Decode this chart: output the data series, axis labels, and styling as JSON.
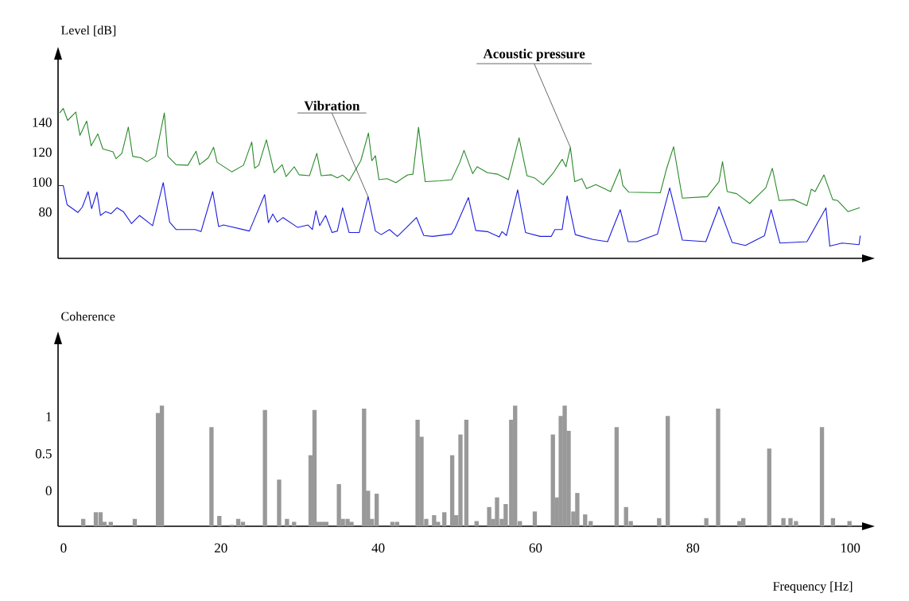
{
  "chart_data": [
    {
      "type": "line",
      "ylabel": "Level [dB]",
      "xlim": [
        -0.7,
        101.5
      ],
      "ylim": [
        49,
        182
      ],
      "yticks": [
        80,
        100,
        120,
        140
      ],
      "tick_labels": "y",
      "series": [
        {
          "color": "#2a8a2a",
          "x": [
            -0.5,
            -0.04,
            0.52,
            1.56,
            2.08,
            2.94,
            3.5,
            4.35,
            4.99,
            6.29,
            6.67,
            7.41,
            8.23,
            8.79,
            9.83,
            10.58,
            11.7,
            12.81,
            13.26,
            14.3,
            15.8,
            16.84,
            17.28,
            18.4,
            19.07,
            19.52,
            21.38,
            22.87,
            23.92,
            24.29,
            24.81,
            25.78,
            26.78,
            27.79,
            28.28,
            29.32,
            29.95,
            31.26,
            32.19,
            32.75,
            34.05,
            34.8,
            35.47,
            36.29,
            37.78,
            38.75,
            39.19,
            39.64,
            40.09,
            41.13,
            42.25,
            43.74,
            44.41,
            45.12,
            45.97,
            47.84,
            49.33,
            50.37,
            50.9,
            52.0,
            52.57,
            53.88,
            55.18,
            56.56,
            57.9,
            58.91,
            59.84,
            60.96,
            62.26,
            63.38,
            63.86,
            64.42,
            64.98,
            65.88,
            66.47,
            67.66,
            69.53,
            70.72,
            71.09,
            71.84,
            75.86,
            76.61,
            77.54,
            78.66,
            81.82,
            83.31,
            83.76,
            84.36,
            85.55,
            87.22,
            89.27,
            90.09,
            90.95,
            92.81,
            94.49,
            95.05,
            95.53,
            96.65,
            97.77,
            98.4,
            99.7,
            101.2
          ],
          "values": [
            146.3,
            149.3,
            141.3,
            146.9,
            131.3,
            140.9,
            124.3,
            132.3,
            122.3,
            120.3,
            115.7,
            119.3,
            136.9,
            117.3,
            116.3,
            113.7,
            117.3,
            146.3,
            117.3,
            111.7,
            111.3,
            120.7,
            111.7,
            116.3,
            123.3,
            113.3,
            106.9,
            111.3,
            126.9,
            109.3,
            111.3,
            128.3,
            106.3,
            111.7,
            103.7,
            110.3,
            104.9,
            104.3,
            119.3,
            104.3,
            104.9,
            102.9,
            104.7,
            100.9,
            114.3,
            132.9,
            114.3,
            117.7,
            101.7,
            102.3,
            99.7,
            104.9,
            105.3,
            136.7,
            100.3,
            100.9,
            101.7,
            113.3,
            121.3,
            105.7,
            110.3,
            106.3,
            105.3,
            101.7,
            129.7,
            104.3,
            102.9,
            98.3,
            106.3,
            115.3,
            110.3,
            123.3,
            100.3,
            102.3,
            95.7,
            98.3,
            93.7,
            108.7,
            97.7,
            93.3,
            92.9,
            108.3,
            123.7,
            89.3,
            90.3,
            100.3,
            113.7,
            93.7,
            92.3,
            85.7,
            96.3,
            109.3,
            87.7,
            88.3,
            84.3,
            95.3,
            93.7,
            104.9,
            88.3,
            87.7,
            80.3,
            82.9
          ]
        },
        {
          "color": "#1c1ce0",
          "x": [
            -0.6,
            -0.04,
            0.45,
            1.82,
            2.38,
            3.13,
            3.57,
            4.24,
            4.69,
            5.36,
            6.03,
            6.78,
            7.6,
            8.64,
            9.65,
            11.32,
            12.67,
            13.48,
            14.3,
            16.73,
            17.47,
            18.96,
            19.71,
            20.34,
            23.62,
            25.56,
            26.04,
            26.6,
            27.16,
            27.9,
            29.77,
            31.07,
            31.63,
            32.08,
            32.56,
            33.31,
            34.13,
            34.8,
            35.47,
            36.29,
            37.59,
            38.71,
            39.64,
            40.38,
            41.43,
            42.43,
            44.86,
            45.79,
            46.91,
            49.33,
            49.78,
            51.46,
            52.39,
            53.88,
            55.37,
            55.74,
            56.3,
            57.72,
            58.72,
            60.58,
            62.0,
            62.45,
            63.38,
            64.01,
            65.05,
            67.29,
            69.15,
            70.76,
            71.76,
            72.88,
            75.49,
            77.05,
            78.66,
            81.64,
            83.31,
            84.99,
            86.67,
            89.09,
            89.94,
            91.06,
            94.49,
            96.91,
            97.4,
            98.96,
            101.12,
            101.27
          ],
          "values": [
            97.7,
            97.7,
            84.9,
            79.7,
            83.3,
            93.7,
            82.3,
            93.3,
            77.7,
            80.3,
            78.9,
            82.9,
            80.3,
            72.3,
            77.7,
            70.9,
            99.7,
            73.3,
            68.3,
            68.3,
            66.9,
            93.7,
            70.3,
            71.3,
            67.3,
            91.7,
            72.9,
            78.7,
            73.3,
            76.3,
            69.7,
            71.3,
            68.3,
            80.9,
            70.9,
            77.7,
            66.3,
            67.3,
            82.9,
            66.3,
            66.3,
            90.3,
            67.3,
            64.9,
            68.3,
            63.7,
            76.3,
            64.3,
            63.7,
            65.3,
            69.3,
            89.7,
            67.7,
            66.9,
            63.3,
            66.9,
            64.3,
            94.8,
            66.3,
            63.7,
            63.7,
            68.3,
            68.3,
            90.8,
            64.9,
            61.6,
            60.2,
            81.6,
            60.2,
            60.2,
            65.2,
            96.2,
            61.2,
            60.2,
            83.6,
            59.6,
            57.6,
            64.2,
            81.6,
            59.2,
            60.2,
            82.8,
            57.2,
            59.2,
            58.2,
            64.2
          ]
        }
      ],
      "annotations": [
        {
          "text": "Vibration",
          "x": 38.71,
          "y": 90.3
        },
        {
          "text": "Acoustic pressure",
          "x": 64.42,
          "y": 123.3
        }
      ]
    },
    {
      "type": "bar",
      "ylabel": "Coherence",
      "xlabel": "Frequency [Hz]",
      "xlim": [
        -0.7,
        101.5
      ],
      "ylim": [
        -0.48,
        1.98
      ],
      "xticks": [
        0,
        20,
        40,
        60,
        80,
        100
      ],
      "yticks": [
        0,
        0.5,
        1
      ],
      "color": "#999999",
      "x": [
        2.5,
        4.1,
        4.7,
        5.2,
        6.0,
        9.05,
        12.0,
        12.5,
        18.8,
        19.8,
        21.4,
        22.2,
        22.8,
        25.6,
        27.4,
        28.4,
        29.3,
        31.4,
        31.9,
        32.4,
        32.9,
        33.4,
        35.0,
        35.5,
        36.1,
        36.6,
        38.2,
        38.7,
        39.2,
        39.8,
        41.8,
        42.4,
        45.0,
        45.5,
        46.1,
        47.1,
        47.6,
        48.4,
        49.4,
        49.9,
        50.45,
        51.2,
        52.5,
        54.1,
        54.6,
        55.1,
        55.7,
        56.2,
        56.9,
        57.4,
        58.0,
        59.9,
        62.2,
        62.7,
        63.2,
        63.7,
        64.2,
        64.8,
        65.3,
        66.3,
        67.0,
        70.3,
        71.5,
        72.1,
        75.7,
        76.8,
        81.7,
        83.2,
        85.9,
        86.4,
        89.7,
        91.5,
        92.4,
        93.1,
        96.4,
        97.8,
        99.9
      ],
      "base": [
        -0.48,
        -0.48,
        -0.48,
        -0.48,
        -0.48,
        -0.48,
        -0.48,
        -0.48,
        -0.48,
        -0.48,
        -0.48,
        -0.48,
        -0.48,
        -0.48,
        -0.48,
        -0.48,
        -0.48,
        -0.48,
        -0.48,
        -0.48,
        -0.48,
        -0.48,
        -0.48,
        -0.48,
        -0.48,
        -0.48,
        -0.48,
        -0.48,
        -0.48,
        -0.48,
        -0.48,
        -0.48,
        -0.48,
        -0.48,
        -0.48,
        -0.48,
        -0.48,
        -0.48,
        -0.48,
        -0.48,
        -0.48,
        -0.48,
        -0.48,
        -0.48,
        -0.48,
        -0.48,
        -0.48,
        -0.48,
        -0.48,
        -0.48,
        -0.48,
        -0.48,
        -0.48,
        -0.48,
        -0.48,
        -0.48,
        -0.48,
        -0.48,
        -0.48,
        -0.48,
        -0.48,
        -0.48,
        -0.48,
        -0.48,
        -0.48,
        -0.48,
        -0.48,
        -0.48,
        -0.48,
        -0.48,
        -0.48,
        -0.48,
        -0.48,
        -0.48,
        -0.48,
        -0.48,
        -0.48
      ],
      "values": [
        0.1,
        0.19,
        0.19,
        0.06,
        0.06,
        0.1,
        1.53,
        1.63,
        1.34,
        0.14,
        0.02,
        0.1,
        0.06,
        1.57,
        0.63,
        0.1,
        0.06,
        0.96,
        1.57,
        0.06,
        0.06,
        0.06,
        0.57,
        0.1,
        0.1,
        0.06,
        1.59,
        0.48,
        0.1,
        0.44,
        0.06,
        0.06,
        1.44,
        1.21,
        0.1,
        0.15,
        0.06,
        0.19,
        0.96,
        0.15,
        1.24,
        1.44,
        0.07,
        0.26,
        0.1,
        0.39,
        0.1,
        0.3,
        1.44,
        1.63,
        0.07,
        0.2,
        1.24,
        0.39,
        1.49,
        1.63,
        1.29,
        0.2,
        0.45,
        0.16,
        0.07,
        1.34,
        0.26,
        0.07,
        0.11,
        1.49,
        0.11,
        1.59,
        0.07,
        0.11,
        1.05,
        0.11,
        0.11,
        0.07,
        1.34,
        0.11,
        0.07
      ]
    }
  ]
}
